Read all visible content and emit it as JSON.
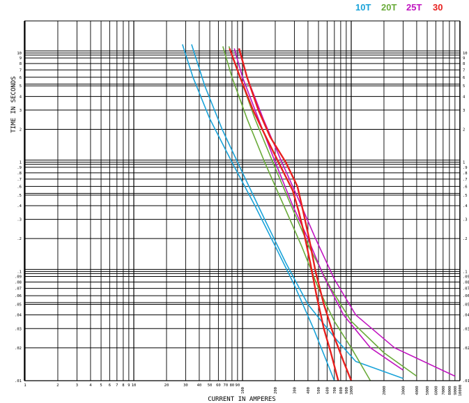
{
  "chart_data": {
    "type": "line",
    "title": "",
    "xlabel": "CURRENT IN AMPERES",
    "ylabel": "TIME IN SECONDS",
    "xscale": "log",
    "yscale": "log",
    "xlim": [
      1,
      10000
    ],
    "ylim": [
      0.01,
      20
    ],
    "grid": true,
    "legend_position": "top-right",
    "x_tick_labels": [
      {
        "value": 1,
        "label": "1"
      },
      {
        "value": 2,
        "label": "2"
      },
      {
        "value": 3,
        "label": "3"
      },
      {
        "value": 4,
        "label": "4"
      },
      {
        "value": 5,
        "label": "5"
      },
      {
        "value": 6,
        "label": "6"
      },
      {
        "value": 7,
        "label": "7"
      },
      {
        "value": 8,
        "label": "8"
      },
      {
        "value": 9,
        "label": "9"
      },
      {
        "value": 10,
        "label": "10"
      },
      {
        "value": 20,
        "label": "20"
      },
      {
        "value": 30,
        "label": "30"
      },
      {
        "value": 40,
        "label": "40"
      },
      {
        "value": 50,
        "label": "50"
      },
      {
        "value": 60,
        "label": "60"
      },
      {
        "value": 70,
        "label": "70"
      },
      {
        "value": 80,
        "label": "80"
      },
      {
        "value": 90,
        "label": "90"
      },
      {
        "value": 100,
        "label": "100"
      },
      {
        "value": 200,
        "label": "200"
      },
      {
        "value": 300,
        "label": "300"
      },
      {
        "value": 400,
        "label": "400"
      },
      {
        "value": 500,
        "label": "500"
      },
      {
        "value": 600,
        "label": "600"
      },
      {
        "value": 700,
        "label": "700"
      },
      {
        "value": 800,
        "label": "800"
      },
      {
        "value": 900,
        "label": "900"
      },
      {
        "value": 1000,
        "label": "1000"
      },
      {
        "value": 2000,
        "label": "2000"
      },
      {
        "value": 3000,
        "label": "3000"
      },
      {
        "value": 4000,
        "label": "4000"
      },
      {
        "value": 5000,
        "label": "5000"
      },
      {
        "value": 6000,
        "label": "6000"
      },
      {
        "value": 7000,
        "label": "7000"
      },
      {
        "value": 8000,
        "label": "8000"
      },
      {
        "value": 9000,
        "label": "9000"
      },
      {
        "value": 10000,
        "label": "10000"
      }
    ],
    "y_tick_labels": [
      {
        "value": 10,
        "label": "10"
      },
      {
        "value": 9,
        "label": "9"
      },
      {
        "value": 8,
        "label": "8"
      },
      {
        "value": 7,
        "label": "7"
      },
      {
        "value": 6,
        "label": "6"
      },
      {
        "value": 5,
        "label": "5"
      },
      {
        "value": 4,
        "label": "4"
      },
      {
        "value": 3,
        "label": "3"
      },
      {
        "value": 2,
        "label": "2"
      },
      {
        "value": 1,
        "label": "1"
      },
      {
        "value": 0.9,
        "label": ".9"
      },
      {
        "value": 0.8,
        "label": ".8"
      },
      {
        "value": 0.7,
        "label": ".7"
      },
      {
        "value": 0.6,
        "label": ".6"
      },
      {
        "value": 0.5,
        "label": ".5"
      },
      {
        "value": 0.4,
        "label": ".4"
      },
      {
        "value": 0.3,
        "label": ".3"
      },
      {
        "value": 0.2,
        "label": ".2"
      },
      {
        "value": 0.1,
        "label": ".1"
      },
      {
        "value": 0.09,
        "label": ".09"
      },
      {
        "value": 0.08,
        "label": ".08"
      },
      {
        "value": 0.07,
        "label": ".07"
      },
      {
        "value": 0.06,
        "label": ".06"
      },
      {
        "value": 0.05,
        "label": ".05"
      },
      {
        "value": 0.04,
        "label": ".04"
      },
      {
        "value": 0.03,
        "label": ".03"
      },
      {
        "value": 0.02,
        "label": ".02"
      },
      {
        "value": 0.01,
        "label": ".01"
      }
    ],
    "series": [
      {
        "name": "10T",
        "color": "#1aa3d9",
        "lines": [
          [
            [
              28,
              12
            ],
            [
              35,
              6
            ],
            [
              50,
              2.5
            ],
            [
              80,
              1.0
            ],
            [
              130,
              0.4
            ],
            [
              200,
              0.17
            ],
            [
              300,
              0.075
            ],
            [
              450,
              0.03
            ],
            [
              700,
              0.01
            ]
          ],
          [
            [
              34,
              12
            ],
            [
              45,
              5
            ],
            [
              65,
              2
            ],
            [
              100,
              0.8
            ],
            [
              160,
              0.3
            ],
            [
              250,
              0.12
            ],
            [
              400,
              0.05
            ],
            [
              700,
              0.025
            ],
            [
              1100,
              0.015
            ],
            [
              3000,
              0.0105
            ]
          ]
        ]
      },
      {
        "name": "20T",
        "color": "#6aab3a",
        "lines": [
          [
            [
              66,
              11.5
            ],
            [
              80,
              6
            ],
            [
              110,
              2.5
            ],
            [
              160,
              1.0
            ],
            [
              240,
              0.4
            ],
            [
              350,
              0.17
            ],
            [
              500,
              0.07
            ],
            [
              700,
              0.035
            ],
            [
              1000,
              0.02
            ],
            [
              1500,
              0.01
            ]
          ],
          [
            [
              75,
              11.5
            ],
            [
              95,
              6
            ],
            [
              130,
              2.5
            ],
            [
              190,
              1.0
            ],
            [
              280,
              0.4
            ],
            [
              420,
              0.16
            ],
            [
              650,
              0.07
            ],
            [
              1000,
              0.035
            ],
            [
              2000,
              0.018
            ],
            [
              4000,
              0.011
            ]
          ]
        ]
      },
      {
        "name": "25T",
        "color": "#c014c0",
        "lines": [
          [
            [
              84,
              11
            ],
            [
              100,
              6
            ],
            [
              140,
              2.5
            ],
            [
              200,
              1.0
            ],
            [
              290,
              0.4
            ],
            [
              400,
              0.2
            ],
            [
              560,
              0.09
            ],
            [
              850,
              0.04
            ],
            [
              1500,
              0.02
            ],
            [
              3000,
              0.0125
            ]
          ],
          [
            [
              92,
              11
            ],
            [
              110,
              6
            ],
            [
              155,
              2.5
            ],
            [
              230,
              1.0
            ],
            [
              330,
              0.45
            ],
            [
              470,
              0.2
            ],
            [
              700,
              0.085
            ],
            [
              1100,
              0.04
            ],
            [
              2500,
              0.02
            ],
            [
              9000,
              0.011
            ]
          ]
        ]
      },
      {
        "name": "30",
        "color": "#e8201e",
        "lines": [
          [
            [
              76,
              11
            ],
            [
              95,
              6
            ],
            [
              125,
              3
            ],
            [
              160,
              1.8
            ],
            [
              220,
              0.95
            ],
            [
              290,
              0.55
            ],
            [
              330,
              0.35
            ],
            [
              370,
              0.22
            ],
            [
              420,
              0.12
            ],
            [
              480,
              0.06
            ],
            [
              560,
              0.03
            ],
            [
              650,
              0.018
            ],
            [
              760,
              0.01
            ]
          ],
          [
            [
              93,
              11
            ],
            [
              110,
              6
            ],
            [
              140,
              3
            ],
            [
              180,
              1.7
            ],
            [
              250,
              1.0
            ],
            [
              320,
              0.6
            ],
            [
              360,
              0.36
            ],
            [
              410,
              0.2
            ],
            [
              470,
              0.1
            ],
            [
              560,
              0.05
            ],
            [
              700,
              0.025
            ],
            [
              850,
              0.015
            ],
            [
              1000,
              0.01
            ]
          ]
        ]
      }
    ]
  }
}
